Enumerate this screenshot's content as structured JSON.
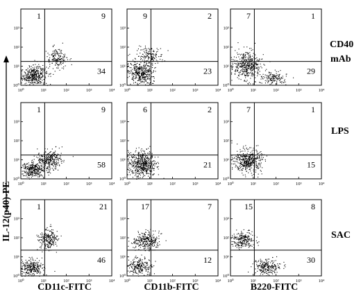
{
  "figure": {
    "y_axis_label": "IL-12(p40)-PE",
    "row_labels": [
      {
        "lines": [
          "CD40",
          "mAb"
        ]
      },
      {
        "lines": [
          "LPS"
        ]
      },
      {
        "lines": [
          "SAC"
        ]
      }
    ],
    "column_labels": [
      "CD11c-FITC",
      "CD11b-FITC",
      "B220-FITC"
    ],
    "axis_ticks": [
      "10⁰",
      "10¹",
      "10²",
      "10³",
      "10⁴"
    ],
    "axis_tick_values": [
      0,
      1,
      2,
      3,
      4
    ],
    "ink_color": "#000000"
  },
  "chart_data": {
    "type": "scatter",
    "axes": {
      "x": "log10 FITC fluorescence (decades)",
      "y": "log10 IL-12(p40)-PE fluorescence (decades)"
    },
    "xlim": [
      0,
      4
    ],
    "ylim": [
      0,
      4
    ],
    "scale": "log",
    "rows": [
      "CD40 mAb",
      "LPS",
      "SAC"
    ],
    "columns": [
      "CD11c-FITC",
      "CD11b-FITC",
      "B220-FITC"
    ],
    "panels": [
      {
        "row": 0,
        "col": 0,
        "quadrants": {
          "upper_left": "1",
          "upper_right": "9",
          "lower_right": "34"
        },
        "gate": {
          "x": 1.05,
          "y": 1.25
        },
        "clusters": [
          {
            "cx": 0.55,
            "cy": 0.55,
            "sx": 0.45,
            "sy": 0.4,
            "n": 380
          },
          {
            "cx": 1.55,
            "cy": 1.4,
            "sx": 0.4,
            "sy": 0.45,
            "n": 170
          }
        ]
      },
      {
        "row": 0,
        "col": 1,
        "quadrants": {
          "upper_left": "9",
          "upper_right": "2",
          "lower_right": "23"
        },
        "gate": {
          "x": 1.05,
          "y": 1.25
        },
        "clusters": [
          {
            "cx": 0.6,
            "cy": 0.65,
            "sx": 0.45,
            "sy": 0.45,
            "n": 380
          },
          {
            "cx": 1.0,
            "cy": 1.55,
            "sx": 0.5,
            "sy": 0.4,
            "n": 150
          }
        ]
      },
      {
        "row": 0,
        "col": 2,
        "quadrants": {
          "upper_left": "7",
          "upper_right": "1",
          "lower_right": "29"
        },
        "gate": {
          "x": 1.05,
          "y": 1.25
        },
        "clusters": [
          {
            "cx": 0.7,
            "cy": 1.05,
            "sx": 0.5,
            "sy": 0.6,
            "n": 420
          },
          {
            "cx": 1.9,
            "cy": 0.4,
            "sx": 0.45,
            "sy": 0.3,
            "n": 140
          }
        ]
      },
      {
        "row": 1,
        "col": 0,
        "quadrants": {
          "upper_left": "1",
          "upper_right": "9",
          "lower_right": "58"
        },
        "gate": {
          "x": 1.05,
          "y": 1.25
        },
        "clusters": [
          {
            "cx": 0.55,
            "cy": 0.5,
            "sx": 0.4,
            "sy": 0.35,
            "n": 300
          },
          {
            "cx": 1.25,
            "cy": 1.0,
            "sx": 0.45,
            "sy": 0.4,
            "n": 300
          }
        ]
      },
      {
        "row": 1,
        "col": 1,
        "quadrants": {
          "upper_left": "6",
          "upper_right": "2",
          "lower_right": "21"
        },
        "gate": {
          "x": 1.05,
          "y": 1.25
        },
        "clusters": [
          {
            "cx": 0.65,
            "cy": 0.8,
            "sx": 0.5,
            "sy": 0.55,
            "n": 520
          }
        ]
      },
      {
        "row": 1,
        "col": 2,
        "quadrants": {
          "upper_left": "7",
          "upper_right": "1",
          "lower_right": "15"
        },
        "gate": {
          "x": 1.05,
          "y": 1.25
        },
        "clusters": [
          {
            "cx": 0.75,
            "cy": 0.95,
            "sx": 0.5,
            "sy": 0.5,
            "n": 450
          }
        ]
      },
      {
        "row": 2,
        "col": 0,
        "quadrants": {
          "upper_left": "1",
          "upper_right": "21",
          "lower_right": "46"
        },
        "gate": {
          "x": 1.05,
          "y": 1.35
        },
        "clusters": [
          {
            "cx": 0.45,
            "cy": 0.45,
            "sx": 0.4,
            "sy": 0.35,
            "n": 260
          },
          {
            "cx": 1.2,
            "cy": 1.95,
            "sx": 0.35,
            "sy": 0.45,
            "n": 230
          }
        ]
      },
      {
        "row": 2,
        "col": 1,
        "quadrants": {
          "upper_left": "17",
          "upper_right": "7",
          "lower_right": "12"
        },
        "gate": {
          "x": 1.05,
          "y": 1.35
        },
        "clusters": [
          {
            "cx": 0.55,
            "cy": 0.5,
            "sx": 0.45,
            "sy": 0.35,
            "n": 230
          },
          {
            "cx": 0.85,
            "cy": 1.85,
            "sx": 0.45,
            "sy": 0.4,
            "n": 280
          }
        ]
      },
      {
        "row": 2,
        "col": 2,
        "quadrants": {
          "upper_left": "15",
          "upper_right": "8",
          "lower_right": "30"
        },
        "gate": {
          "x": 1.05,
          "y": 1.35
        },
        "clusters": [
          {
            "cx": 0.55,
            "cy": 1.9,
            "sx": 0.4,
            "sy": 0.35,
            "n": 230
          },
          {
            "cx": 1.6,
            "cy": 0.5,
            "sx": 0.5,
            "sy": 0.35,
            "n": 230
          }
        ]
      }
    ]
  }
}
